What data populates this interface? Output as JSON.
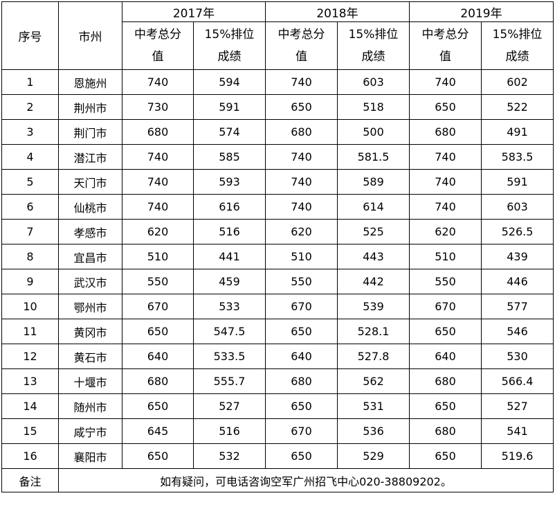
{
  "header": {
    "seq": "序号",
    "city": "市州",
    "years": [
      "2017年",
      "2018年",
      "2019年"
    ],
    "total_score": "中考总分\n值",
    "rank_score": "15%排位\n成绩"
  },
  "rows": [
    {
      "no": "1",
      "city": "恩施州",
      "v": [
        "740",
        "594",
        "740",
        "603",
        "740",
        "602"
      ]
    },
    {
      "no": "2",
      "city": "荆州市",
      "v": [
        "730",
        "591",
        "650",
        "518",
        "650",
        "522"
      ]
    },
    {
      "no": "3",
      "city": "荆门市",
      "v": [
        "680",
        "574",
        "680",
        "500",
        "680",
        "491"
      ]
    },
    {
      "no": "4",
      "city": "潜江市",
      "v": [
        "740",
        "585",
        "740",
        "581.5",
        "740",
        "583.5"
      ]
    },
    {
      "no": "5",
      "city": "天门市",
      "v": [
        "740",
        "593",
        "740",
        "589",
        "740",
        "591"
      ]
    },
    {
      "no": "6",
      "city": "仙桃市",
      "v": [
        "740",
        "616",
        "740",
        "614",
        "740",
        "603"
      ]
    },
    {
      "no": "7",
      "city": "孝感市",
      "v": [
        "620",
        "516",
        "620",
        "525",
        "620",
        "526.5"
      ]
    },
    {
      "no": "8",
      "city": "宜昌市",
      "v": [
        "510",
        "441",
        "510",
        "443",
        "510",
        "439"
      ]
    },
    {
      "no": "9",
      "city": "武汉市",
      "v": [
        "550",
        "459",
        "550",
        "442",
        "550",
        "446"
      ]
    },
    {
      "no": "10",
      "city": "鄂州市",
      "v": [
        "670",
        "533",
        "670",
        "539",
        "670",
        "577"
      ]
    },
    {
      "no": "11",
      "city": "黄冈市",
      "v": [
        "650",
        "547.5",
        "650",
        "528.1",
        "650",
        "546"
      ]
    },
    {
      "no": "12",
      "city": "黄石市",
      "v": [
        "640",
        "533.5",
        "640",
        "527.8",
        "640",
        "530"
      ]
    },
    {
      "no": "13",
      "city": "十堰市",
      "v": [
        "680",
        "555.7",
        "680",
        "562",
        "680",
        "566.4"
      ]
    },
    {
      "no": "14",
      "city": "随州市",
      "v": [
        "650",
        "527",
        "650",
        "531",
        "650",
        "527"
      ]
    },
    {
      "no": "15",
      "city": "咸宁市",
      "v": [
        "645",
        "516",
        "670",
        "536",
        "680",
        "541"
      ]
    },
    {
      "no": "16",
      "city": "襄阳市",
      "v": [
        "650",
        "532",
        "650",
        "529",
        "650",
        "519.6"
      ]
    }
  ],
  "note": {
    "label": "备注",
    "text": "如有疑问，可电话咨询空军广州招飞中心020-38809202。"
  }
}
